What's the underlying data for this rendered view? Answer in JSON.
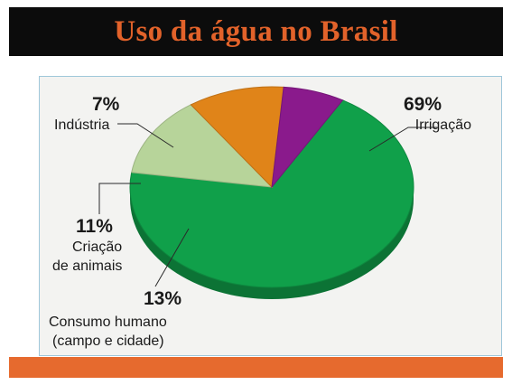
{
  "slide": {
    "title": "Uso da água no Brasil",
    "title_color": "#e2622a",
    "title_bar_color": "#0c0c0c",
    "footer_color": "#e66a2e"
  },
  "chart_data": {
    "type": "pie",
    "title": "",
    "slices": [
      {
        "percent_label": "69%",
        "label_lines": [
          "Irrigação"
        ],
        "value": 69,
        "color": "#10a04a"
      },
      {
        "percent_label": "13%",
        "label_lines": [
          "Consumo humano",
          "(campo e cidade)"
        ],
        "value": 13,
        "color": "#b7d49a"
      },
      {
        "percent_label": "11%",
        "label_lines": [
          "Criação",
          "de animais"
        ],
        "value": 11,
        "color": "#e08419"
      },
      {
        "percent_label": "7%",
        "label_lines": [
          "Indústria"
        ],
        "value": 7,
        "color": "#8a1a8c"
      }
    ]
  }
}
